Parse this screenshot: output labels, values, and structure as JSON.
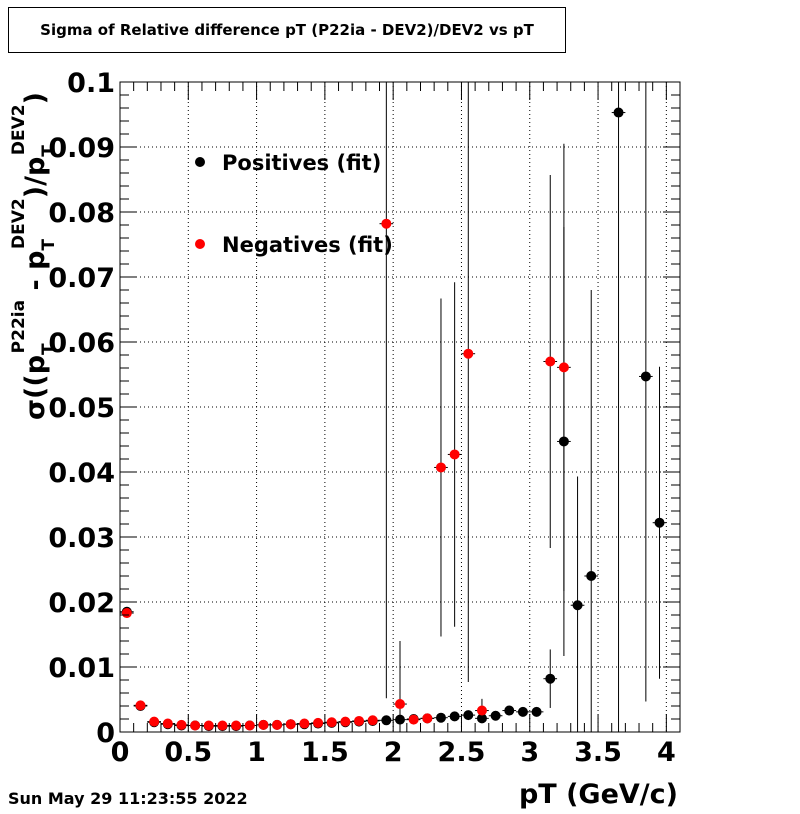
{
  "chart_data": {
    "type": "scatter",
    "title": "Sigma of Relative difference pT (P22ia - DEV2)/DEV2 vs pT",
    "xlabel": "pT (GeV/c)",
    "ylabel": {
      "lead": "σ((p",
      "sub1": "T",
      "sup1": "P22ia",
      "mid": " - p",
      "sub2": "T",
      "sup2": "DEV2",
      "tail": ")/p",
      "sub3": "T",
      "sup3": "DEV2",
      "end": ")"
    },
    "xlim": [
      0,
      4.1
    ],
    "ylim": [
      0,
      0.1
    ],
    "xticks": [
      0,
      0.5,
      1,
      1.5,
      2,
      2.5,
      3,
      3.5,
      4
    ],
    "xtick_labels": [
      "0",
      "0.5",
      "1",
      "1.5",
      "2",
      "2.5",
      "3",
      "3.5",
      "4"
    ],
    "yticks": [
      0,
      0.01,
      0.02,
      0.03,
      0.04,
      0.05,
      0.06,
      0.07,
      0.08,
      0.09,
      0.1
    ],
    "ytick_labels": [
      "0",
      "0.01",
      "0.02",
      "0.03",
      "0.04",
      "0.05",
      "0.06",
      "0.07",
      "0.08",
      "0.09",
      "0.1"
    ],
    "grid": true,
    "legend_position": "top-left",
    "series": [
      {
        "name": "Positives (fit)",
        "color": "#000000",
        "points": [
          {
            "x": 0.05,
            "y": 0.0185,
            "err": 0.0005
          },
          {
            "x": 0.15,
            "y": 0.004,
            "err": 0.0002
          },
          {
            "x": 0.25,
            "y": 0.0015,
            "err": 0.0001
          },
          {
            "x": 0.35,
            "y": 0.0012,
            "err": 0.0001
          },
          {
            "x": 0.45,
            "y": 0.001,
            "err": 0.0001
          },
          {
            "x": 0.55,
            "y": 0.001,
            "err": 0.0001
          },
          {
            "x": 0.65,
            "y": 0.0009,
            "err": 0.0001
          },
          {
            "x": 0.75,
            "y": 0.0009,
            "err": 0.0001
          },
          {
            "x": 0.85,
            "y": 0.0009,
            "err": 0.0001
          },
          {
            "x": 0.95,
            "y": 0.001,
            "err": 0.0001
          },
          {
            "x": 1.05,
            "y": 0.0011,
            "err": 0.0001
          },
          {
            "x": 1.15,
            "y": 0.0011,
            "err": 0.0001
          },
          {
            "x": 1.25,
            "y": 0.0012,
            "err": 0.0001
          },
          {
            "x": 1.35,
            "y": 0.0012,
            "err": 0.0001
          },
          {
            "x": 1.45,
            "y": 0.0013,
            "err": 0.0001
          },
          {
            "x": 1.55,
            "y": 0.0014,
            "err": 0.0001
          },
          {
            "x": 1.65,
            "y": 0.0015,
            "err": 0.0001
          },
          {
            "x": 1.75,
            "y": 0.0016,
            "err": 0.0001
          },
          {
            "x": 1.85,
            "y": 0.0017,
            "err": 0.0001
          },
          {
            "x": 1.95,
            "y": 0.0018,
            "err": 0.0002
          },
          {
            "x": 2.05,
            "y": 0.0019,
            "err": 0.0002
          },
          {
            "x": 2.15,
            "y": 0.002,
            "err": 0.0002
          },
          {
            "x": 2.25,
            "y": 0.0021,
            "err": 0.0002
          },
          {
            "x": 2.35,
            "y": 0.0022,
            "err": 0.0002
          },
          {
            "x": 2.45,
            "y": 0.0024,
            "err": 0.0003
          },
          {
            "x": 2.55,
            "y": 0.0026,
            "err": 0.0003
          },
          {
            "x": 2.65,
            "y": 0.0021,
            "err": 0.0006
          },
          {
            "x": 2.75,
            "y": 0.0025,
            "err": 0.0004
          },
          {
            "x": 2.85,
            "y": 0.0033,
            "err": 0.0004
          },
          {
            "x": 2.95,
            "y": 0.0031,
            "err": 0.0004
          },
          {
            "x": 3.05,
            "y": 0.0031,
            "err": 0.0005
          },
          {
            "x": 3.15,
            "y": 0.0082,
            "err": 0.0045
          },
          {
            "x": 3.25,
            "y": 0.0447,
            "err": 0.033
          },
          {
            "x": 3.35,
            "y": 0.0195,
            "err": 0.0198
          },
          {
            "x": 3.45,
            "y": 0.024,
            "err": 0.044
          },
          {
            "x": 3.65,
            "y": 0.0953,
            "err": 0.0953
          },
          {
            "x": 3.85,
            "y": 0.0547,
            "err": 0.05
          },
          {
            "x": 3.95,
            "y": 0.0322,
            "err": 0.024
          }
        ]
      },
      {
        "name": "Negatives (fit)",
        "color": "#ff0000",
        "points": [
          {
            "x": 0.05,
            "y": 0.0183,
            "err": 0.0005
          },
          {
            "x": 0.15,
            "y": 0.0041,
            "err": 0.0002
          },
          {
            "x": 0.25,
            "y": 0.0016,
            "err": 0.0001
          },
          {
            "x": 0.35,
            "y": 0.0013,
            "err": 0.0001
          },
          {
            "x": 0.45,
            "y": 0.0011,
            "err": 0.0001
          },
          {
            "x": 0.55,
            "y": 0.001,
            "err": 0.0001
          },
          {
            "x": 0.65,
            "y": 0.001,
            "err": 0.0001
          },
          {
            "x": 0.75,
            "y": 0.001,
            "err": 0.0001
          },
          {
            "x": 0.85,
            "y": 0.001,
            "err": 0.0001
          },
          {
            "x": 0.95,
            "y": 0.001,
            "err": 0.0001
          },
          {
            "x": 1.05,
            "y": 0.0011,
            "err": 0.0001
          },
          {
            "x": 1.15,
            "y": 0.0011,
            "err": 0.0001
          },
          {
            "x": 1.25,
            "y": 0.0012,
            "err": 0.0001
          },
          {
            "x": 1.35,
            "y": 0.0013,
            "err": 0.0001
          },
          {
            "x": 1.45,
            "y": 0.0014,
            "err": 0.0001
          },
          {
            "x": 1.55,
            "y": 0.0015,
            "err": 0.0001
          },
          {
            "x": 1.65,
            "y": 0.0016,
            "err": 0.0001
          },
          {
            "x": 1.75,
            "y": 0.0017,
            "err": 0.0001
          },
          {
            "x": 1.85,
            "y": 0.0018,
            "err": 0.0002
          },
          {
            "x": 1.95,
            "y": 0.0782,
            "err": 0.073
          },
          {
            "x": 2.05,
            "y": 0.0043,
            "err": 0.0097
          },
          {
            "x": 2.15,
            "y": 0.0019,
            "err": 0.0003
          },
          {
            "x": 2.25,
            "y": 0.0021,
            "err": 0.0003
          },
          {
            "x": 2.35,
            "y": 0.0407,
            "err": 0.026
          },
          {
            "x": 2.45,
            "y": 0.0427,
            "err": 0.0265
          },
          {
            "x": 2.55,
            "y": 0.0582,
            "err": 0.0505
          },
          {
            "x": 2.65,
            "y": 0.0033,
            "err": 0.0018
          },
          {
            "x": 3.15,
            "y": 0.057,
            "err": 0.0287
          },
          {
            "x": 3.25,
            "y": 0.0561,
            "err": 0.0344
          }
        ]
      }
    ]
  },
  "timestamp": "Sun May 29 11:23:55 2022"
}
